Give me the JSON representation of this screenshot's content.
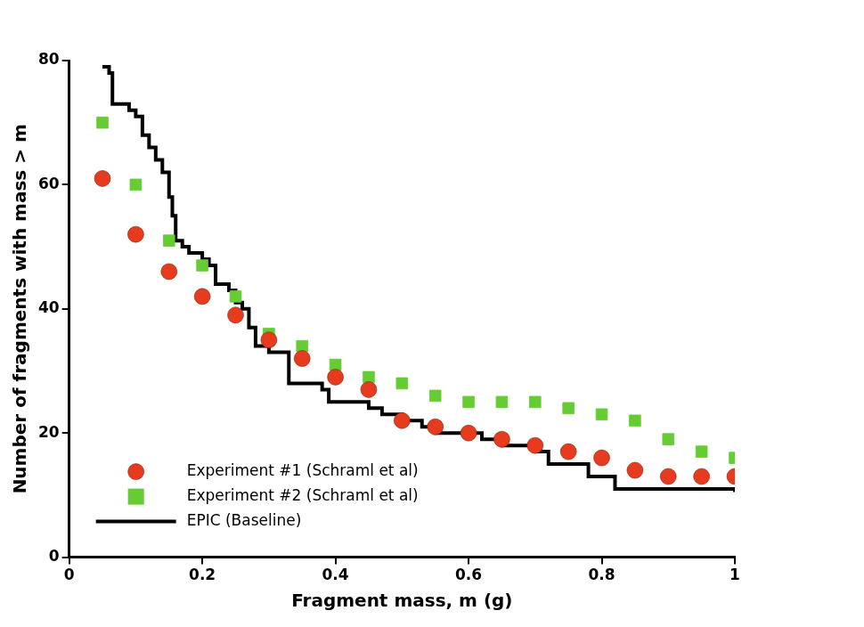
{
  "chart_data": {
    "type": "scatter",
    "x_label": "Fragment mass, m (g)",
    "y_label": "Number of fragments with mass > m",
    "xlim": [
      0,
      1
    ],
    "xticks": [
      0,
      0.2,
      0.4,
      0.6,
      0.8,
      1
    ],
    "ylim": [
      0,
      80
    ],
    "yticks": [
      0,
      20,
      40,
      60,
      80
    ],
    "grid": false,
    "legend": "lower left",
    "series": [
      {
        "name": "Experiment #1 (Schraml et al)",
        "type": "scatter",
        "marker": "circle",
        "color": "#e63b1e",
        "x": [
          0.05,
          0.1,
          0.15,
          0.2,
          0.25,
          0.3,
          0.35,
          0.4,
          0.45,
          0.5,
          0.55,
          0.6,
          0.65,
          0.7,
          0.75,
          0.8,
          0.85,
          0.9,
          0.95,
          1.0
        ],
        "values": [
          61,
          52,
          46,
          42,
          39,
          35,
          32,
          29,
          27,
          22,
          21,
          20,
          19,
          18,
          17,
          16,
          14,
          13,
          13,
          13
        ]
      },
      {
        "name": "Experiment #2 (Schraml et al)",
        "type": "scatter",
        "marker": "square",
        "color": "#66cc33",
        "x": [
          0.05,
          0.1,
          0.15,
          0.2,
          0.25,
          0.3,
          0.35,
          0.4,
          0.45,
          0.5,
          0.55,
          0.6,
          0.65,
          0.7,
          0.75,
          0.8,
          0.85,
          0.9,
          0.95,
          1.0
        ],
        "values": [
          70,
          60,
          51,
          47,
          42,
          36,
          34,
          31,
          29,
          28,
          26,
          25,
          25,
          25,
          24,
          23,
          22,
          19,
          17,
          16
        ]
      },
      {
        "name": "EPIC (Baseline)",
        "type": "line",
        "marker": "none",
        "line_style": "solid",
        "color": "#000000",
        "x": [
          0.05,
          0.06,
          0.065,
          0.09,
          0.1,
          0.11,
          0.12,
          0.13,
          0.14,
          0.15,
          0.155,
          0.16,
          0.17,
          0.18,
          0.2,
          0.21,
          0.22,
          0.24,
          0.25,
          0.26,
          0.27,
          0.28,
          0.3,
          0.33,
          0.38,
          0.39,
          0.45,
          0.47,
          0.5,
          0.53,
          0.55,
          0.62,
          0.65,
          0.7,
          0.72,
          0.78,
          0.82,
          1.0
        ],
        "values": [
          79,
          78,
          73,
          72,
          71,
          68,
          66,
          64,
          62,
          58,
          55,
          51,
          50,
          49,
          48,
          47,
          44,
          43,
          41,
          40,
          37,
          34,
          33,
          28,
          27,
          25,
          24,
          23,
          22,
          21,
          20,
          19,
          18,
          17,
          15,
          13,
          11,
          10.5
        ]
      }
    ]
  }
}
